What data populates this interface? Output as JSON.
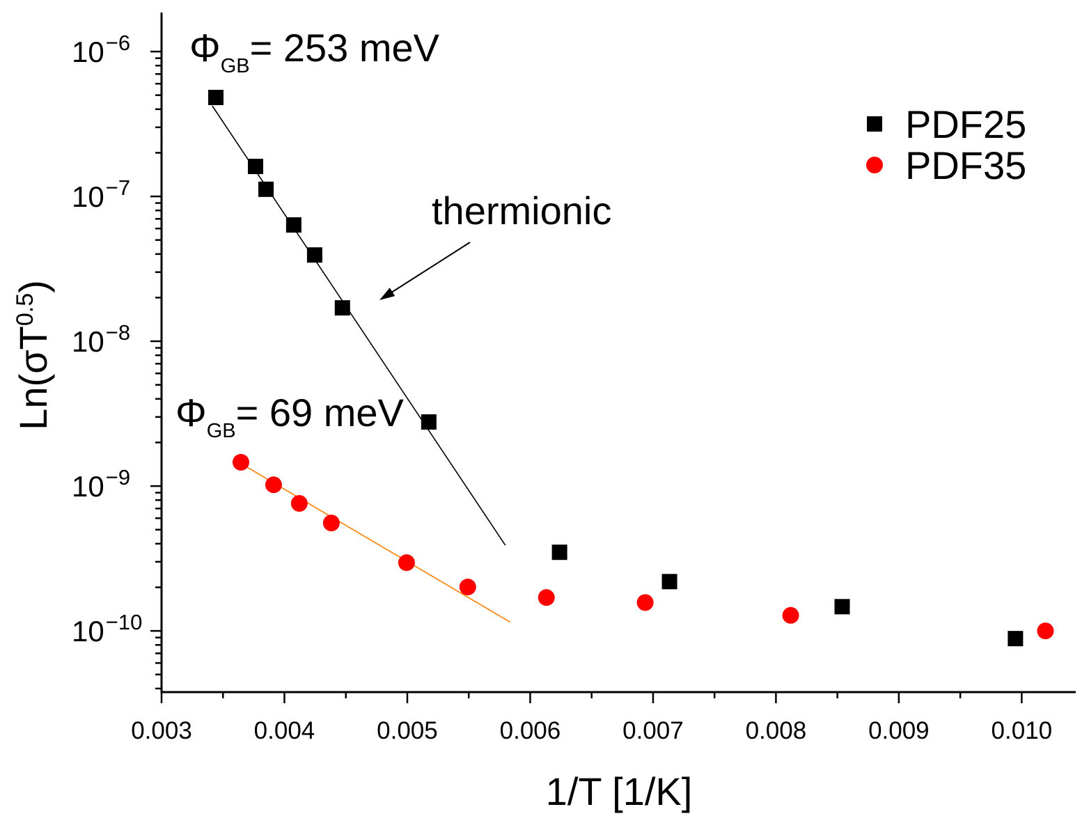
{
  "chart_data": {
    "type": "scatter",
    "xlabel": "1/T [1/K]",
    "ylabel": {
      "base": "Ln(σT",
      "sup": "0.5",
      "end": ")"
    },
    "xlim": [
      0.003,
      0.01044
    ],
    "ylim": [
      3.78e-11,
      1.86e-06
    ],
    "xticks": [
      0.003,
      0.004,
      0.005,
      0.006,
      0.007,
      0.008,
      0.009,
      0.01
    ],
    "xtick_labels": [
      "0.003",
      "0.004",
      "0.005",
      "0.006",
      "0.007",
      "0.008",
      "0.009",
      "0.010"
    ],
    "yticks": [
      1e-10,
      1e-09,
      1e-08,
      1e-07,
      1e-06
    ],
    "ytick_labels": [
      {
        "base": "10",
        "exp": "−10"
      },
      {
        "base": "10",
        "exp": "−9"
      },
      {
        "base": "10",
        "exp": "−8"
      },
      {
        "base": "10",
        "exp": "−7"
      },
      {
        "base": "10",
        "exp": "−6"
      }
    ],
    "series": [
      {
        "name": "PDF25",
        "marker": "square",
        "color": "#000000",
        "x": [
          0.003442,
          0.003765,
          0.00385,
          0.004076,
          0.004246,
          0.004472,
          0.005175,
          0.006239,
          0.007134,
          0.008539,
          0.009949
        ],
        "y": [
          4.82e-07,
          1.61e-07,
          1.12e-07,
          6.35e-08,
          3.94e-08,
          1.7e-08,
          2.77e-09,
          3.49e-10,
          2.19e-10,
          1.47e-10,
          8.85e-11
        ]
      },
      {
        "name": "PDF35",
        "marker": "circle",
        "color": "#ff0000",
        "x": [
          0.003646,
          0.003912,
          0.004121,
          0.004382,
          0.004994,
          0.005492,
          0.006132,
          0.006936,
          0.00812,
          0.010193
        ],
        "y": [
          1.46e-09,
          1.02e-09,
          7.59e-10,
          5.56e-10,
          2.96e-10,
          2.01e-10,
          1.7e-10,
          1.57e-10,
          1.28e-10,
          1e-10
        ]
      }
    ],
    "fit_lines": [
      {
        "series": 0,
        "color": "#000000",
        "x": [
          0.003413,
          0.005798
        ],
        "y": [
          4.22e-07,
          3.9e-10
        ]
      },
      {
        "series": 1,
        "color": "#ff7f00",
        "x": [
          0.00364,
          0.005837
        ],
        "y": [
          1.44e-09,
          1.15e-10
        ]
      }
    ],
    "annotations": {
      "barrier_pdf25": {
        "symbol": "Φ",
        "sub": "GB",
        "text": "= 253 meV"
      },
      "barrier_pdf35": {
        "symbol": "Φ",
        "sub": "GB",
        "text": "= 69 meV"
      },
      "arrow_label": "thermionic"
    }
  }
}
